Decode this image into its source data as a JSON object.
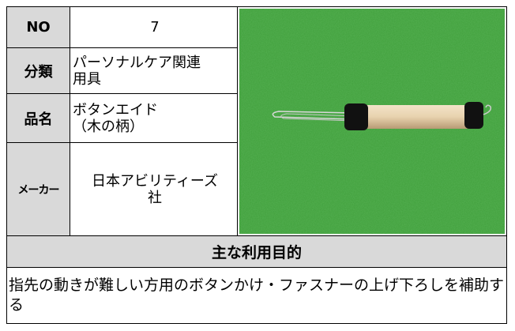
{
  "fields": [
    {
      "label": "NO",
      "value": "7"
    },
    {
      "label": "分類",
      "value": "パーソナルケア関連\n用具"
    },
    {
      "label": "品名",
      "value": "ボタンエイド\n（木の柄）"
    },
    {
      "label": "メーカー",
      "value": "日本アビリティーズ\n社"
    }
  ],
  "purpose": {
    "title": "主な利用目的",
    "text": "指先の動きが難しい方用のボタンかけ・ファスナーの上げ下ろしを補助する"
  }
}
